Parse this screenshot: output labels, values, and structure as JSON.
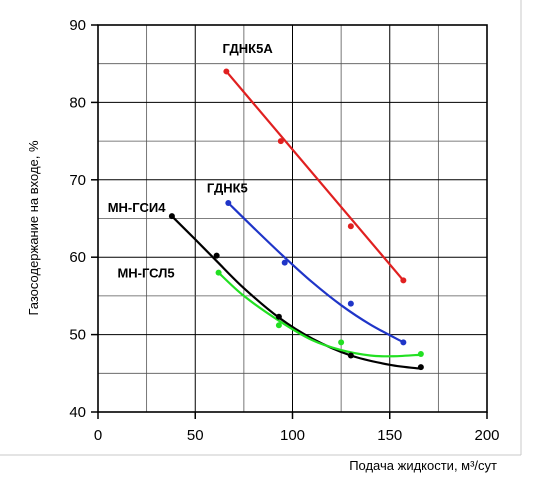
{
  "chart_data": {
    "type": "line",
    "title": "",
    "xlabel": "Подача жидкости, м³/сут",
    "ylabel": "Газосодержание на входе, %",
    "xlim": [
      0,
      200
    ],
    "ylim": [
      40,
      90
    ],
    "x_ticks": [
      0,
      50,
      100,
      150,
      200
    ],
    "y_ticks": [
      40,
      50,
      60,
      70,
      80,
      90
    ],
    "x_tick_labels": [
      "0",
      "50",
      "100",
      "150",
      "200"
    ],
    "y_tick_labels": [
      "40",
      "50",
      "60",
      "70",
      "80",
      "90"
    ],
    "grid": true,
    "series": [
      {
        "name": "ГДНК5А",
        "color": "#e02020",
        "points": [
          [
            66,
            84
          ],
          [
            94,
            75
          ],
          [
            130,
            64
          ],
          [
            157,
            57
          ]
        ],
        "curve": [
          [
            66,
            84
          ],
          [
            157,
            57
          ]
        ]
      },
      {
        "name": "ГДНК5",
        "color": "#1f35c8",
        "points": [
          [
            67,
            67
          ],
          [
            96,
            59.3
          ],
          [
            130,
            54
          ],
          [
            157,
            49
          ]
        ],
        "curve": [
          [
            67,
            67
          ],
          [
            80,
            63.8
          ],
          [
            95,
            60.2
          ],
          [
            110,
            56.8
          ],
          [
            125,
            53.8
          ],
          [
            140,
            51.3
          ],
          [
            157,
            49
          ]
        ]
      },
      {
        "name": "МН-ГСИ4",
        "color": "#000000",
        "points": [
          [
            38,
            65.3
          ],
          [
            61,
            60.2
          ],
          [
            93,
            52.3
          ],
          [
            130,
            47.3
          ],
          [
            166,
            45.8
          ]
        ],
        "curve": [
          [
            38,
            65.3
          ],
          [
            50,
            62.3
          ],
          [
            61,
            59.5
          ],
          [
            75,
            56
          ],
          [
            93,
            52.2
          ],
          [
            110,
            49.5
          ],
          [
            130,
            47.3
          ],
          [
            150,
            46.1
          ],
          [
            166,
            45.6
          ]
        ]
      },
      {
        "name": "МН-ГСЛ5",
        "color": "#22e022",
        "points": [
          [
            62,
            58
          ],
          [
            93,
            51.2
          ],
          [
            125,
            49
          ],
          [
            166,
            47.5
          ]
        ],
        "curve": [
          [
            62,
            58
          ],
          [
            75,
            55
          ],
          [
            93,
            51.8
          ],
          [
            110,
            49.3
          ],
          [
            125,
            48
          ],
          [
            140,
            47.3
          ],
          [
            152,
            47.2
          ],
          [
            166,
            47.4
          ]
        ]
      }
    ],
    "series_labels": [
      {
        "name": "ГДНК5А",
        "x": 64,
        "y": 87
      },
      {
        "name": "ГДНК5",
        "x": 56,
        "y": 69
      },
      {
        "name": "МН-ГСИ4",
        "x": 5,
        "y": 66.5
      },
      {
        "name": "МН-ГСЛ5",
        "x": 10,
        "y": 58
      }
    ]
  }
}
